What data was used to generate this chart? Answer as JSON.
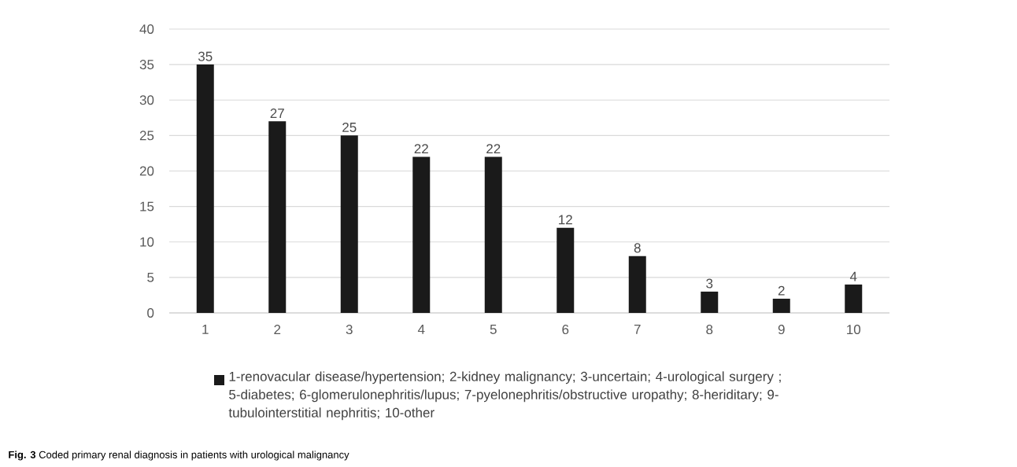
{
  "chart_data": {
    "type": "bar",
    "categories": [
      "1",
      "2",
      "3",
      "4",
      "5",
      "6",
      "7",
      "8",
      "9",
      "10"
    ],
    "series": [
      {
        "name": "1-renovacular disease/hypertension; 2-kidney malignancy; 3-uncertain; 4-urological surgery ; 5-diabetes; 6-glomerulonephritis/lupus; 7-pyelonephritis/obstructive uropathy; 8-heriditary; 9-tubulointerstitial nephritis; 10-other",
        "color": "#1a1a1a",
        "values": [
          35,
          27,
          25,
          22,
          22,
          12,
          8,
          3,
          2,
          4
        ]
      }
    ],
    "ylim": [
      0,
      40
    ],
    "yticks": [
      0,
      5,
      10,
      15,
      20,
      25,
      30,
      35,
      40
    ],
    "grid": "y",
    "legend": "bottom",
    "data_labels": true,
    "annotations": [
      "**Fig. 3** Coded primary renal diagnosis in patients with urological malignancy"
    ]
  }
}
